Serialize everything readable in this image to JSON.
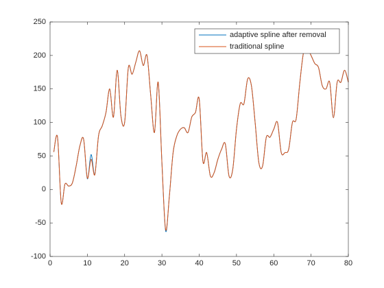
{
  "chart_data": {
    "type": "line",
    "x": [
      1,
      2,
      3,
      4,
      5,
      6,
      7,
      8,
      9,
      10,
      11,
      12,
      13,
      14,
      15,
      16,
      17,
      18,
      19,
      20,
      21,
      22,
      23,
      24,
      25,
      26,
      27,
      28,
      29,
      30,
      31,
      32,
      33,
      34,
      35,
      36,
      37,
      38,
      39,
      40,
      41,
      42,
      43,
      44,
      45,
      46,
      47,
      48,
      49,
      50,
      51,
      52,
      53,
      54,
      55,
      56,
      57,
      58,
      59,
      60,
      61,
      62,
      63,
      64,
      65,
      66,
      67,
      68,
      69,
      70,
      71,
      72,
      73,
      74,
      75,
      76,
      77,
      78,
      79,
      80
    ],
    "series": [
      {
        "name": "adaptive spline after removal",
        "color": "#0072bd",
        "values": [
          56,
          78,
          -20,
          8,
          5,
          10,
          35,
          65,
          75,
          16,
          52,
          22,
          80,
          95,
          115,
          150,
          108,
          178,
          110,
          100,
          182,
          172,
          190,
          207,
          185,
          200,
          140,
          85,
          160,
          40,
          -62,
          -10,
          55,
          80,
          90,
          92,
          85,
          108,
          115,
          135,
          42,
          55,
          20,
          25,
          45,
          60,
          68,
          20,
          30,
          90,
          128,
          128,
          165,
          155,
          100,
          40,
          35,
          78,
          78,
          90,
          100,
          55,
          55,
          60,
          100,
          105,
          160,
          205,
          210,
          200,
          188,
          182,
          155,
          150,
          160,
          107,
          160,
          160,
          178,
          160
        ]
      },
      {
        "name": "traditional spline",
        "color": "#d95319",
        "values": [
          56,
          78,
          -20,
          8,
          5,
          10,
          35,
          65,
          75,
          17,
          45,
          22,
          80,
          95,
          115,
          150,
          108,
          178,
          110,
          100,
          182,
          172,
          190,
          207,
          185,
          200,
          140,
          85,
          160,
          40,
          -60,
          -10,
          55,
          80,
          90,
          92,
          85,
          108,
          115,
          135,
          42,
          55,
          20,
          25,
          45,
          60,
          68,
          20,
          30,
          90,
          128,
          128,
          165,
          155,
          100,
          40,
          35,
          78,
          78,
          90,
          100,
          55,
          55,
          60,
          100,
          105,
          160,
          205,
          210,
          200,
          188,
          182,
          155,
          150,
          160,
          107,
          160,
          160,
          178,
          160
        ]
      }
    ],
    "xlim": [
      0,
      80
    ],
    "xticks": [
      0,
      10,
      20,
      30,
      40,
      50,
      60,
      70,
      80
    ],
    "ylim": [
      -100,
      250
    ],
    "yticks": [
      -100,
      -50,
      0,
      50,
      100,
      150,
      200,
      250
    ],
    "legend": "northeast"
  }
}
